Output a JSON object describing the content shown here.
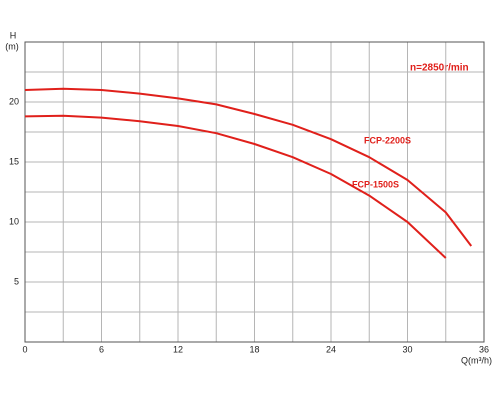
{
  "chart_data": {
    "type": "line",
    "y_label_top": "H",
    "y_label_unit": "(m)",
    "x_label": "Q(m³/h)",
    "annotation": "n=2850r/min",
    "x": [
      0,
      3,
      6,
      9,
      12,
      15,
      18,
      21,
      24,
      27,
      30,
      33,
      35
    ],
    "series": [
      {
        "name": "FCP-2200S",
        "color": "#e0201b",
        "values": [
          21,
          21.1,
          21,
          20.7,
          20.3,
          19.8,
          19.0,
          18.1,
          16.9,
          15.4,
          13.5,
          10.8,
          8
        ]
      },
      {
        "name": "FCP-1500S",
        "color": "#e0201b",
        "values": [
          18.8,
          18.85,
          18.7,
          18.4,
          18.0,
          17.4,
          16.5,
          15.4,
          14.0,
          12.2,
          10.0,
          7.0,
          null
        ]
      }
    ],
    "xlim": [
      0,
      36
    ],
    "xticks": [
      0,
      6,
      12,
      18,
      24,
      30,
      36
    ],
    "minor_xticks": [
      3,
      9,
      15,
      21,
      27,
      33
    ],
    "ylim": [
      0,
      25
    ],
    "yticks": [
      5,
      10,
      15,
      20
    ],
    "minor_yticks": [
      2.5,
      7.5,
      12.5,
      17.5,
      22.5
    ],
    "grid": true
  }
}
